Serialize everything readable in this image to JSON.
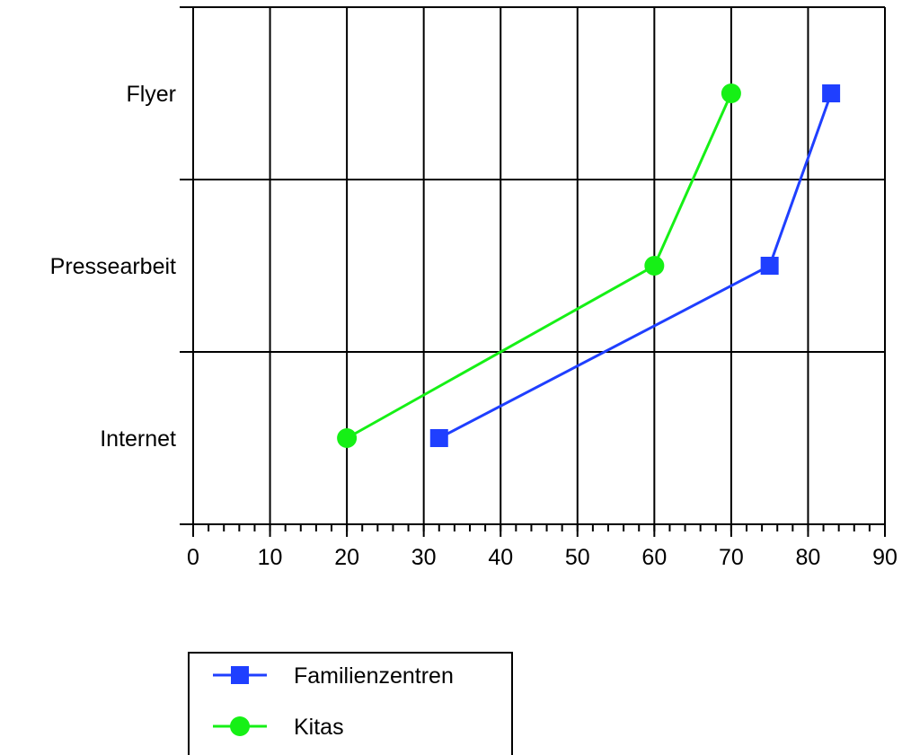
{
  "chart_data": {
    "type": "line",
    "orientation": "horizontal",
    "categories": [
      "Internet",
      "Pressearbeit",
      "Flyer"
    ],
    "x_ticks": [
      "0",
      "10",
      "20",
      "30",
      "40",
      "50",
      "60",
      "70",
      "80",
      "90"
    ],
    "xlim": [
      0,
      90
    ],
    "grid": true,
    "legend_position": "bottom",
    "series": [
      {
        "name": "Familienzentren",
        "marker": "square",
        "color": "#1f3fff",
        "values": [
          32,
          75,
          83
        ]
      },
      {
        "name": "Kitas",
        "marker": "circle",
        "color": "#16f016",
        "values": [
          20,
          60,
          70
        ]
      }
    ]
  }
}
